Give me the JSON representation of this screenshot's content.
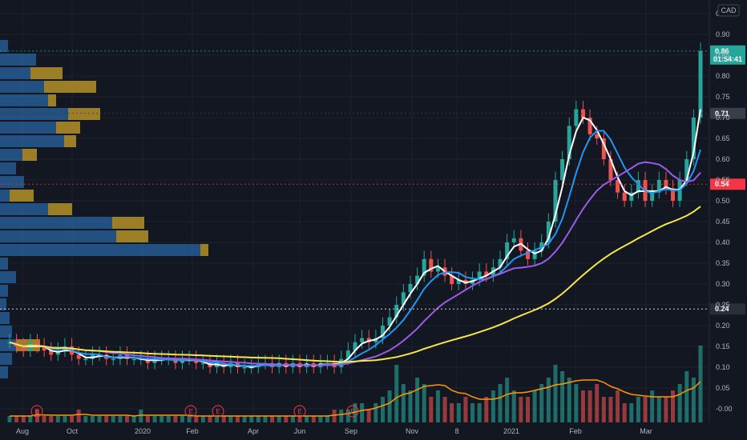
{
  "currency": "CAD",
  "colors": {
    "background": "#131722",
    "grid": "#1e222d",
    "up": "#26a69a",
    "down": "#ef5350",
    "sma_white": "#ffffff",
    "sma_blue": "#2196f3",
    "sma_purple": "#9c5ce6",
    "sma_yellow": "#f5e74b",
    "volume_ma": "#ff9800",
    "vp_up": "#2f7fd0",
    "vp_down": "#c9a227"
  },
  "chart_data": {
    "type": "candlestick",
    "x_ticks": [
      "Aug",
      "Oct",
      "2020",
      "Feb",
      "Apr",
      "Jun",
      "Sep",
      "Nov",
      "8",
      "2021",
      "Feb",
      "Mar"
    ],
    "y_ticks": [
      "0.95",
      "0.90",
      "0.85",
      "0.80",
      "0.75",
      "0.70",
      "0.65",
      "0.60",
      "0.55",
      "0.50",
      "0.45",
      "0.40",
      "0.35",
      "0.30",
      "0.25",
      "0.20",
      "0.15",
      "0.10",
      "0.05",
      "-0.00"
    ],
    "ylim": [
      -0.02,
      1.0
    ],
    "price_tags": [
      {
        "label": "0.86",
        "sub": "01:54:41",
        "value": 0.86,
        "color": "#26a69a"
      },
      {
        "label": "0.71",
        "value": 0.71,
        "color": "#3a3e4a"
      },
      {
        "label": "0.54",
        "value": 0.54,
        "color": "#f23645"
      },
      {
        "label": "0.24",
        "value": 0.24,
        "color": "#2a2e39"
      }
    ],
    "earnings_markers": [
      "E",
      "E",
      "E",
      "E",
      "E"
    ],
    "closes": [
      0.16,
      0.15,
      0.14,
      0.16,
      0.15,
      0.14,
      0.13,
      0.14,
      0.15,
      0.13,
      0.12,
      0.12,
      0.13,
      0.13,
      0.12,
      0.12,
      0.13,
      0.12,
      0.12,
      0.12,
      0.11,
      0.12,
      0.12,
      0.12,
      0.11,
      0.12,
      0.12,
      0.11,
      0.11,
      0.1,
      0.11,
      0.1,
      0.11,
      0.1,
      0.1,
      0.1,
      0.11,
      0.11,
      0.1,
      0.11,
      0.1,
      0.11,
      0.1,
      0.11,
      0.1,
      0.11,
      0.11,
      0.1,
      0.12,
      0.14,
      0.16,
      0.17,
      0.16,
      0.17,
      0.2,
      0.22,
      0.25,
      0.28,
      0.3,
      0.32,
      0.36,
      0.33,
      0.34,
      0.32,
      0.3,
      0.31,
      0.3,
      0.31,
      0.33,
      0.32,
      0.34,
      0.36,
      0.4,
      0.41,
      0.38,
      0.36,
      0.38,
      0.4,
      0.45,
      0.55,
      0.6,
      0.68,
      0.72,
      0.7,
      0.66,
      0.65,
      0.6,
      0.55,
      0.52,
      0.5,
      0.52,
      0.55,
      0.5,
      0.52,
      0.55,
      0.53,
      0.5,
      0.55,
      0.6,
      0.7,
      0.86
    ],
    "volume": [
      1,
      1,
      1,
      1,
      2,
      1,
      1,
      1,
      1,
      1,
      2,
      1,
      1,
      1,
      1,
      1,
      1,
      1,
      1,
      2,
      1,
      1,
      1,
      1,
      1,
      1,
      1,
      1,
      1,
      1,
      1,
      1,
      1,
      1,
      1,
      1,
      1,
      1,
      1,
      1,
      1,
      1,
      1,
      1,
      1,
      1,
      1,
      2,
      2,
      2,
      3,
      3,
      2,
      3,
      4,
      5,
      9,
      6,
      5,
      7,
      6,
      4,
      5,
      4,
      3,
      3,
      4,
      3,
      3,
      4,
      5,
      6,
      7,
      5,
      4,
      4,
      5,
      6,
      7,
      9,
      8,
      7,
      6,
      5,
      5,
      6,
      4,
      4,
      5,
      3,
      3,
      4,
      4,
      5,
      4,
      4,
      5,
      6,
      8,
      7,
      12
    ]
  }
}
